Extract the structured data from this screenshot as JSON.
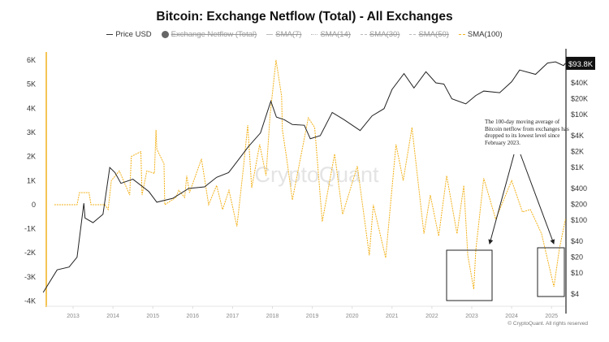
{
  "chart_data": {
    "type": "line",
    "title": "Bitcoin: Exchange Netflow (Total) - All Exchanges",
    "legend": [
      {
        "name": "Price USD",
        "active": true,
        "style": "solid",
        "color": "#222222"
      },
      {
        "name": "Exchange Netflow (Total)",
        "active": false,
        "style": "dot",
        "color": "#666666"
      },
      {
        "name": "SMA(7)",
        "active": false,
        "style": "dashed"
      },
      {
        "name": "SMA(14)",
        "active": false,
        "style": "dashed"
      },
      {
        "name": "SMA(30)",
        "active": false,
        "style": "dashed"
      },
      {
        "name": "SMA(50)",
        "active": false,
        "style": "dashed"
      },
      {
        "name": "SMA(100)",
        "active": true,
        "style": "dashed",
        "color": "#f2b21b"
      }
    ],
    "legend_placement": "top",
    "x_ticks": [
      "2013",
      "2014",
      "2015",
      "2016",
      "2017",
      "2018",
      "2019",
      "2020",
      "2021",
      "2022",
      "2023",
      "2024",
      "2025"
    ],
    "xlim": [
      2012.3,
      2025.4
    ],
    "left_axis": {
      "ticks": [
        "6K",
        "5K",
        "4K",
        "3K",
        "2K",
        "1K",
        "0",
        "-1K",
        "-2K",
        "-3K",
        "-4K"
      ],
      "ylim": [
        -4000,
        6000
      ],
      "color": "#f2b21b"
    },
    "right_axis": {
      "scale": "log",
      "ticks": [
        "$40K",
        "$20K",
        "$10K",
        "$4K",
        "$2K",
        "$1K",
        "$400",
        "$200",
        "$100",
        "$40",
        "$20",
        "$10",
        "$4"
      ],
      "tick_values": [
        40000,
        20000,
        10000,
        4000,
        2000,
        1000,
        400,
        200,
        100,
        40,
        20,
        10,
        4
      ],
      "last_value_label": "$93.8K",
      "last_value": 93800
    },
    "series": [
      {
        "name": "Price USD",
        "axis": "right",
        "color": "#222222",
        "x": [
          2012.25,
          2012.6,
          2012.9,
          2013.1,
          2013.27,
          2013.3,
          2013.5,
          2013.75,
          2013.92,
          2014.05,
          2014.2,
          2014.5,
          2014.9,
          2015.1,
          2015.5,
          2015.9,
          2016.3,
          2016.6,
          2016.9,
          2017.0,
          2017.4,
          2017.7,
          2017.96,
          2018.1,
          2018.3,
          2018.5,
          2018.8,
          2018.95,
          2019.2,
          2019.5,
          2019.8,
          2020.2,
          2020.5,
          2020.8,
          2021.0,
          2021.3,
          2021.55,
          2021.85,
          2022.1,
          2022.3,
          2022.5,
          2022.85,
          2023.1,
          2023.3,
          2023.7,
          2024.0,
          2024.2,
          2024.6,
          2024.9,
          2025.1,
          2025.3,
          2025.35
        ],
        "y": [
          4.3,
          11.5,
          13,
          20,
          210,
          110,
          90,
          130,
          1000,
          800,
          500,
          600,
          350,
          220,
          260,
          400,
          430,
          650,
          800,
          1000,
          2500,
          4500,
          18000,
          9000,
          8000,
          6500,
          6300,
          3500,
          4000,
          11000,
          8000,
          5000,
          9500,
          13000,
          30000,
          60000,
          32000,
          65000,
          40000,
          38000,
          20000,
          16000,
          23000,
          28000,
          26000,
          42000,
          70000,
          58000,
          95000,
          100000,
          85000,
          93800
        ]
      },
      {
        "name": "SMA(100)",
        "axis": "left",
        "color": "#f2b21b",
        "x": [
          2012.53,
          2013.1,
          2013.16,
          2013.4,
          2013.45,
          2013.8,
          2013.88,
          2013.96,
          2014.16,
          2014.42,
          2014.46,
          2014.7,
          2014.73,
          2014.85,
          2015.04,
          2015.08,
          2015.1,
          2015.28,
          2015.3,
          2015.58,
          2015.65,
          2015.8,
          2015.85,
          2015.92,
          2016.22,
          2016.4,
          2016.6,
          2016.75,
          2016.91,
          2017.11,
          2017.27,
          2017.38,
          2017.48,
          2017.68,
          2017.84,
          2017.94,
          2018.09,
          2018.23,
          2018.25,
          2018.35,
          2018.5,
          2018.7,
          2018.9,
          2019.06,
          2019.25,
          2019.56,
          2019.76,
          2020.13,
          2020.43,
          2020.53,
          2020.84,
          2021.1,
          2021.28,
          2021.5,
          2021.8,
          2021.96,
          2022.17,
          2022.37,
          2022.63,
          2022.8,
          2022.9,
          2023.05,
          2023.1,
          2023.3,
          2023.6,
          2024.0,
          2024.27,
          2024.47,
          2024.75,
          2025.06,
          2025.2,
          2025.35
        ],
        "y": [
          0,
          0,
          500,
          500,
          0,
          0,
          -200,
          1000,
          1400,
          400,
          2000,
          2200,
          400,
          1400,
          1300,
          3100,
          2300,
          1700,
          0,
          300,
          600,
          300,
          1200,
          500,
          1900,
          0,
          800,
          -200,
          600,
          -900,
          1500,
          3300,
          700,
          2500,
          1200,
          3700,
          6000,
          4500,
          3100,
          2000,
          200,
          1900,
          3600,
          3200,
          -700,
          2100,
          -400,
          1600,
          -2100,
          0,
          -2200,
          2500,
          1000,
          3200,
          -1200,
          400,
          -1300,
          1200,
          -1200,
          800,
          -2100,
          -3500,
          -1900,
          1100,
          -600,
          1000,
          -300,
          -200,
          -1200,
          -3400,
          -1800,
          -600
        ]
      }
    ],
    "annotation": "The 100-day moving average of Bitcoin netflow from exchanges has dropped to its lowest level since February 2023.",
    "watermark": "CryptoQuant",
    "copyright": "© CryptoQuant. All rights reserved"
  }
}
